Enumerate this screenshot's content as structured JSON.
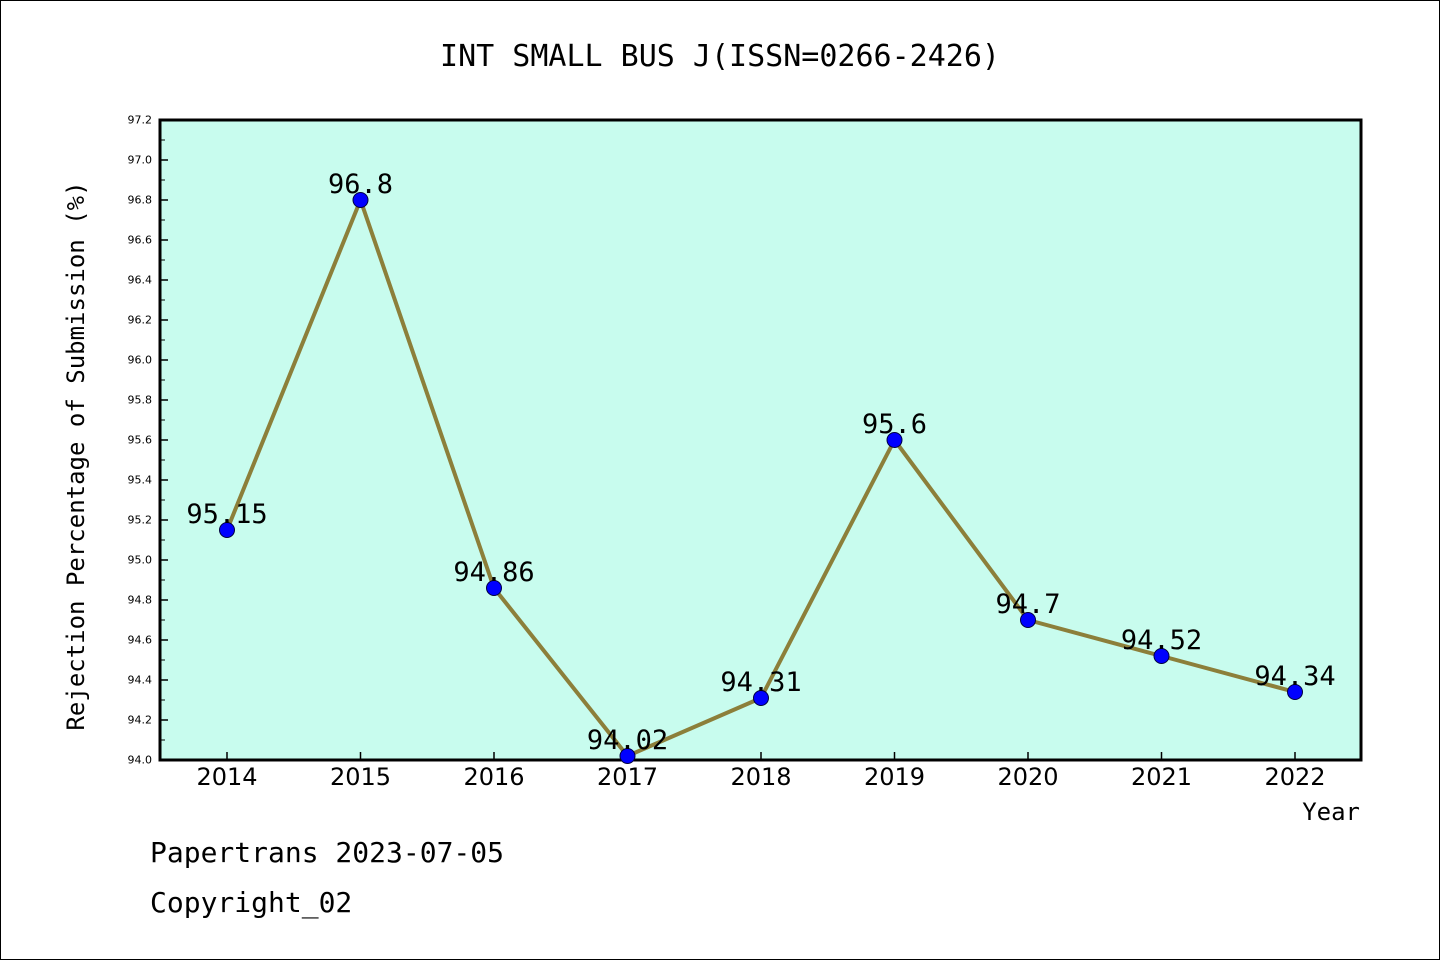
{
  "chart_data": {
    "type": "line",
    "title": "INT SMALL BUS J(ISSN=0266-2426)",
    "xlabel": "Year",
    "ylabel": "Rejection Percentage of Submission (%)",
    "categories": [
      "2014",
      "2015",
      "2016",
      "2017",
      "2018",
      "2019",
      "2020",
      "2021",
      "2022"
    ],
    "series": [
      {
        "values": [
          95.15,
          96.8,
          94.86,
          94.02,
          94.31,
          95.6,
          94.7,
          94.52,
          94.34
        ],
        "data_labels": [
          "95.15",
          "96.8",
          "94.86",
          "94.02",
          "94.31",
          "95.6",
          "94.7",
          "94.52",
          "94.34"
        ]
      }
    ],
    "ylim": [
      94.0,
      97.2
    ],
    "yticks": [
      "94.0",
      "94.2",
      "94.4",
      "94.6",
      "94.8",
      "95.0",
      "95.2",
      "95.4",
      "95.6",
      "95.8",
      "96.0",
      "96.2",
      "96.4",
      "96.6",
      "96.8",
      "97.0",
      "97.2"
    ],
    "grid": false,
    "legend": "none",
    "colors": {
      "plot_background": "#c8fcee",
      "line": "#8c7f3a",
      "marker": "#0000ff",
      "axes": "#000000"
    }
  },
  "footer": {
    "line1": "Papertrans 2023-07-05",
    "line2": "Copyright_02"
  }
}
